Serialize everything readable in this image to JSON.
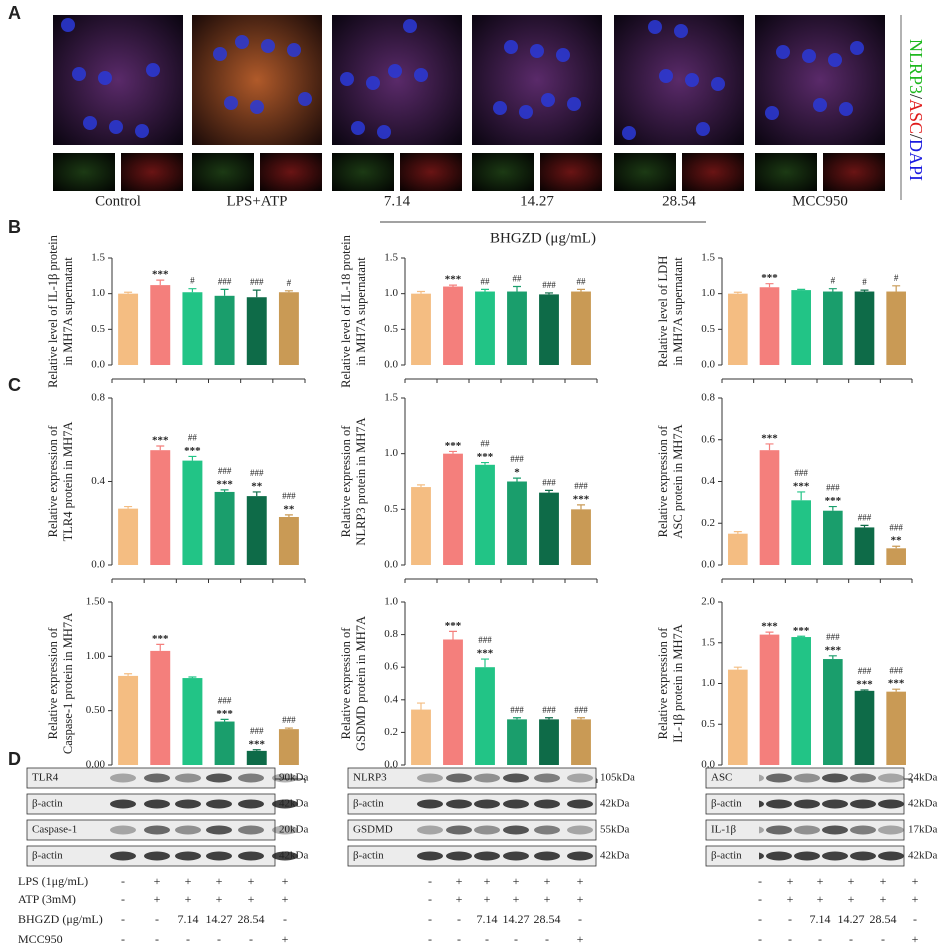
{
  "figure": {
    "panel_labels": [
      "A",
      "B",
      "C",
      "D"
    ],
    "microscopy": {
      "groups": [
        "Control",
        "LPS+ATP",
        "7.14",
        "14.27",
        "28.54",
        "MCC950"
      ],
      "bhgzd_label": "BHGZD (μg/mL)",
      "stain_label": [
        {
          "text": "NLRP3",
          "color": "#1fb81f"
        },
        {
          "text": "/",
          "color": "#222222"
        },
        {
          "text": "ASC",
          "color": "#e01a1a"
        },
        {
          "text": "/",
          "color": "#222222"
        },
        {
          "text": "DAPI",
          "color": "#1a1ae0"
        }
      ]
    },
    "blots": [
      {
        "rows": [
          {
            "protein": "TLR4",
            "size": "90kDa"
          },
          {
            "protein": "β-actin",
            "size": "42kDa"
          },
          {
            "protein": "Caspase-1",
            "size": "20kDa"
          },
          {
            "protein": "β-actin",
            "size": "42kDa"
          }
        ]
      },
      {
        "rows": [
          {
            "protein": "NLRP3",
            "size": "105kDa"
          },
          {
            "protein": "β-actin",
            "size": "42kDa"
          },
          {
            "protein": "GSDMD",
            "size": "55kDa"
          },
          {
            "protein": "β-actin",
            "size": "42kDa"
          }
        ]
      },
      {
        "rows": [
          {
            "protein": "ASC",
            "size": "24kDa"
          },
          {
            "protein": "β-actin",
            "size": "42kDa"
          },
          {
            "protein": "IL-1β",
            "size": "17kDa"
          },
          {
            "protein": "β-actin",
            "size": "42kDa"
          }
        ]
      }
    ],
    "treatments": [
      {
        "label": "LPS (1μg/mL)",
        "cells": [
          "-",
          "+",
          "+",
          "+",
          "+",
          "+"
        ]
      },
      {
        "label": "ATP (3mM)",
        "cells": [
          "-",
          "+",
          "+",
          "+",
          "+",
          "+"
        ]
      },
      {
        "label": "BHGZD (μg/mL)",
        "cells": [
          "-",
          "-",
          "7.14",
          "14.27",
          "28.54",
          "-"
        ]
      },
      {
        "label": "MCC950",
        "cells": [
          "-",
          "-",
          "-",
          "-",
          "-",
          "+"
        ]
      }
    ]
  },
  "chart_data": [
    {
      "type": "bar",
      "ylabel": [
        "Relative level of IL-1β protein",
        "in MH7A supernatant"
      ],
      "colors": [
        "#f4bd82",
        "#f47f7c",
        "#22c486",
        "#1a9e6c",
        "#0e6b48",
        "#c99a55"
      ],
      "values": [
        1.0,
        1.12,
        1.02,
        0.97,
        0.95,
        1.02
      ],
      "errors": [
        0.02,
        0.07,
        0.05,
        0.09,
        0.1,
        0.02
      ],
      "star_labels": [
        null,
        "***",
        null,
        null,
        null,
        null
      ],
      "hash_labels": [
        null,
        null,
        "#",
        "###",
        "###",
        "#"
      ],
      "ylim": [
        0,
        1.5
      ],
      "yticks": [
        {
          "value": 0,
          "label": "0.0"
        },
        0.5,
        {
          "value": 1,
          "label": "1.0"
        },
        1.5
      ]
    },
    {
      "type": "bar",
      "ylabel": [
        "Relative level of IL-18 protein",
        "in MH7A supernatant"
      ],
      "colors": [
        "#f4bd82",
        "#f47f7c",
        "#22c486",
        "#1a9e6c",
        "#0e6b48",
        "#c99a55"
      ],
      "values": [
        1.0,
        1.1,
        1.03,
        1.03,
        0.99,
        1.03
      ],
      "errors": [
        0.03,
        0.02,
        0.03,
        0.07,
        0.02,
        0.03
      ],
      "star_labels": [
        null,
        "***",
        null,
        null,
        null,
        null
      ],
      "hash_labels": [
        null,
        null,
        "##",
        "##",
        "###",
        "##"
      ],
      "ylim": [
        0,
        1.5
      ],
      "yticks": [
        {
          "value": 0,
          "label": "0.0"
        },
        0.5,
        {
          "value": 1,
          "label": "1.0"
        },
        1.5
      ]
    },
    {
      "type": "bar",
      "ylabel": [
        "Relative level of LDH",
        "in MH7A supernatant"
      ],
      "colors": [
        "#f4bd82",
        "#f47f7c",
        "#22c486",
        "#1a9e6c",
        "#0e6b48",
        "#c99a55"
      ],
      "values": [
        1.0,
        1.09,
        1.05,
        1.03,
        1.03,
        1.03
      ],
      "errors": [
        0.02,
        0.05,
        0.01,
        0.04,
        0.02,
        0.08
      ],
      "star_labels": [
        null,
        "***",
        null,
        null,
        null,
        null
      ],
      "hash_labels": [
        null,
        null,
        null,
        "#",
        "#",
        "#"
      ],
      "ylim": [
        0,
        1.5
      ],
      "yticks": [
        {
          "value": 0,
          "label": "0.0"
        },
        0.5,
        {
          "value": 1,
          "label": "1.0"
        },
        1.5
      ]
    },
    {
      "type": "bar",
      "ylabel": [
        "Relative expression of",
        "TLR4 protein in MH7A"
      ],
      "colors": [
        "#f4bd82",
        "#f47f7c",
        "#22c486",
        "#1a9e6c",
        "#0e6b48",
        "#c99a55"
      ],
      "values": [
        0.27,
        0.55,
        0.5,
        0.35,
        0.33,
        0.23
      ],
      "errors": [
        0.01,
        0.02,
        0.02,
        0.01,
        0.02,
        0.01
      ],
      "star_labels": [
        null,
        "***",
        "***",
        "***",
        "**",
        "**"
      ],
      "hash_labels": [
        null,
        null,
        "##",
        "###",
        "###",
        "###"
      ],
      "ylim": [
        0,
        0.8
      ],
      "yticks": [
        {
          "value": 0,
          "label": "0.0"
        },
        0.4,
        0.8
      ]
    },
    {
      "type": "bar",
      "ylabel": [
        "Relative expression of",
        "NLRP3 protein in MH7A"
      ],
      "colors": [
        "#f4bd82",
        "#f47f7c",
        "#22c486",
        "#1a9e6c",
        "#0e6b48",
        "#c99a55"
      ],
      "values": [
        0.7,
        1.0,
        0.9,
        0.75,
        0.65,
        0.5
      ],
      "errors": [
        0.02,
        0.02,
        0.02,
        0.03,
        0.02,
        0.04
      ],
      "star_labels": [
        null,
        "***",
        "***",
        "*",
        null,
        "***"
      ],
      "hash_labels": [
        null,
        null,
        "##",
        "###",
        "###",
        "###"
      ],
      "ylim": [
        0,
        1.5
      ],
      "yticks": [
        {
          "value": 0,
          "label": "0.0"
        },
        0.5,
        {
          "value": 1,
          "label": "1.0"
        },
        1.5
      ]
    },
    {
      "type": "bar",
      "ylabel": [
        "Relative expression of",
        "ASC protein in MH7A"
      ],
      "colors": [
        "#f4bd82",
        "#f47f7c",
        "#22c486",
        "#1a9e6c",
        "#0e6b48",
        "#c99a55"
      ],
      "values": [
        0.15,
        0.55,
        0.31,
        0.26,
        0.18,
        0.08
      ],
      "errors": [
        0.01,
        0.03,
        0.04,
        0.02,
        0.01,
        0.01
      ],
      "star_labels": [
        null,
        "***",
        "***",
        "***",
        null,
        "**"
      ],
      "hash_labels": [
        null,
        null,
        "###",
        "###",
        "###",
        "###"
      ],
      "ylim": [
        0,
        0.8
      ],
      "yticks": [
        {
          "value": 0,
          "label": "0.0"
        },
        0.2,
        0.4,
        0.6,
        0.8
      ]
    },
    {
      "type": "bar",
      "ylabel": [
        "Relative expression of",
        "Caspase-1 protein in MH7A"
      ],
      "colors": [
        "#f4bd82",
        "#f47f7c",
        "#22c486",
        "#1a9e6c",
        "#0e6b48",
        "#c99a55"
      ],
      "values": [
        0.82,
        1.05,
        0.8,
        0.4,
        0.13,
        0.33
      ],
      "errors": [
        0.02,
        0.06,
        0.01,
        0.02,
        0.01,
        0.01
      ],
      "star_labels": [
        null,
        "***",
        null,
        "***",
        "***",
        null
      ],
      "hash_labels": [
        null,
        null,
        null,
        "###",
        "###",
        "###"
      ],
      "ylim": [
        0,
        1.5
      ],
      "yticks": [
        {
          "value": 0,
          "label": "0.00"
        },
        {
          "value": 0.5,
          "label": "0.50"
        },
        {
          "value": 1,
          "label": "1.00"
        },
        {
          "value": 1.5,
          "label": "1.50"
        }
      ]
    },
    {
      "type": "bar",
      "ylabel": [
        "Relative expression of",
        "GSDMD protein in MH7A"
      ],
      "colors": [
        "#f4bd82",
        "#f47f7c",
        "#22c486",
        "#1a9e6c",
        "#0e6b48",
        "#c99a55"
      ],
      "values": [
        0.34,
        0.77,
        0.6,
        0.28,
        0.28,
        0.28
      ],
      "errors": [
        0.04,
        0.05,
        0.05,
        0.01,
        0.01,
        0.01
      ],
      "star_labels": [
        null,
        "***",
        "***",
        null,
        null,
        null
      ],
      "hash_labels": [
        null,
        null,
        "###",
        "###",
        "###",
        "###"
      ],
      "ylim": [
        0,
        1
      ],
      "yticks": [
        {
          "value": 0,
          "label": "0.0"
        },
        0.2,
        0.4,
        0.6,
        0.8,
        {
          "value": 1,
          "label": "1.0"
        }
      ]
    },
    {
      "type": "bar",
      "ylabel": [
        "Relative expression of",
        "IL-1β protein in MH7A"
      ],
      "colors": [
        "#f4bd82",
        "#f47f7c",
        "#22c486",
        "#1a9e6c",
        "#0e6b48",
        "#c99a55"
      ],
      "values": [
        1.17,
        1.6,
        1.57,
        1.3,
        0.91,
        0.9
      ],
      "errors": [
        0.03,
        0.03,
        0.01,
        0.04,
        0.01,
        0.03
      ],
      "star_labels": [
        null,
        "***",
        "***",
        "***",
        "***",
        "***"
      ],
      "hash_labels": [
        null,
        null,
        null,
        "###",
        "###",
        "###"
      ],
      "ylim": [
        0,
        2
      ],
      "yticks": [
        {
          "value": 0,
          "label": "0.0"
        },
        0.5,
        {
          "value": 1,
          "label": "1.0"
        },
        1.5,
        {
          "value": 2,
          "label": "2.0"
        }
      ]
    }
  ]
}
